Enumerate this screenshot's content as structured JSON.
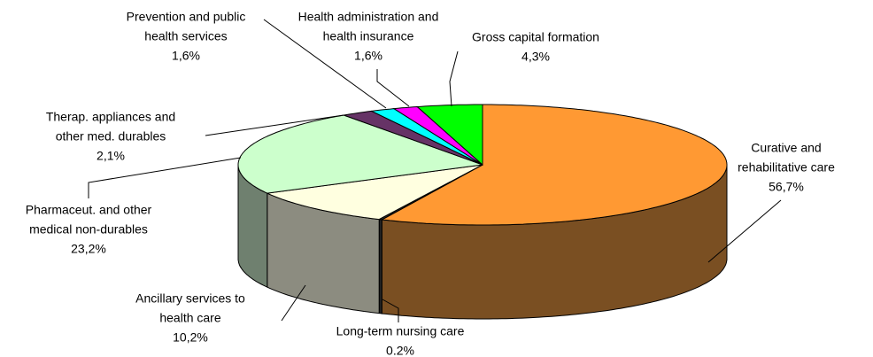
{
  "chart_data": {
    "type": "pie3d",
    "categories": [
      [
        "Curative and",
        "rehabilitative care"
      ],
      [
        "Long-term nursing care"
      ],
      [
        "Ancillary services to",
        "health care"
      ],
      [
        "Pharmaceut. and other",
        "medical non-durables"
      ],
      [
        "Therap. appliances and",
        "other med. durables"
      ],
      [
        "Prevention and public",
        "health services"
      ],
      [
        "Health administration and",
        "health insurance"
      ],
      [
        "Gross capital formation"
      ]
    ],
    "values": [
      56.7,
      0.2,
      10.2,
      23.2,
      2.1,
      1.6,
      1.6,
      4.3
    ],
    "value_labels": [
      "56,7%",
      "0.2%",
      "10,2%",
      "23,2%",
      "2,1%",
      "1,6%",
      "1,6%",
      "4,3%"
    ],
    "colors": [
      "#ff9933",
      "#333333",
      "#ffffe0",
      "#ccffcc",
      "#663366",
      "#00ffff",
      "#ff00ff",
      "#00ff00"
    ],
    "side_colors": [
      "#7a4f22",
      "#222222",
      "#8c8c80",
      "#6f806f",
      "#3a1f3a",
      "#009999",
      "#990099",
      "#009900"
    ]
  }
}
